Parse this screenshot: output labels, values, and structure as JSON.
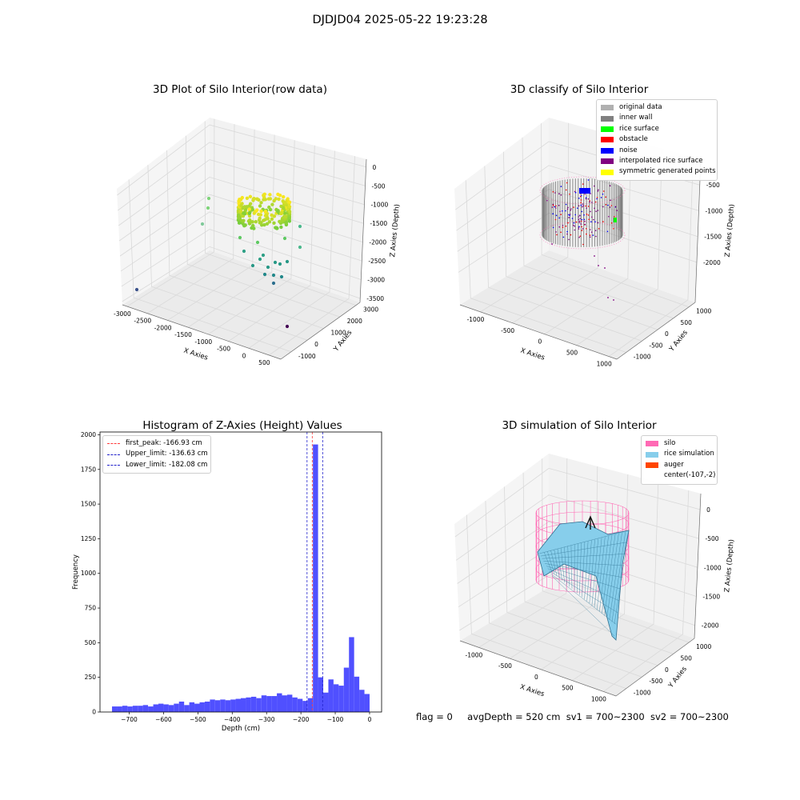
{
  "suptitle": "DJDJD04 2025-05-22 19:23:28",
  "footer": {
    "flag": "flag = 0",
    "avg_depth": "avgDepth = 520 cm",
    "sv1": "sv1 = 700~2300",
    "sv2": "sv2 = 700~2300"
  },
  "colors": {
    "bars": "#5050ff",
    "peak_line": "#ff3b3b",
    "limit_line": "#2222cc",
    "pane": "#f2f2f2",
    "silo": "#ff69b4",
    "rice_sim": "#87ceeb",
    "auger": "#ff4500",
    "inner_wall": "#808080",
    "rice_surface": "#00ff00",
    "obstacle": "#ff0000",
    "noise": "#0000ff",
    "interpolated": "#800080",
    "symmetric": "#ffff00",
    "original": "#b0b0b0"
  },
  "chart_data": [
    {
      "type": "scatter",
      "projection": "3d",
      "title": "3D Plot of Silo Interior(row data)",
      "xlabel": "X Axies",
      "ylabel": "Y Axies",
      "zlabel": "Z Axies (Depth)",
      "x_ticks": [
        "-3000",
        "-2500",
        "-2000",
        "-1500",
        "-1000",
        "-500",
        "0",
        "500"
      ],
      "y_ticks": [
        "-1000",
        "0",
        "1000",
        "2000",
        "3000"
      ],
      "z_ticks": [
        "0",
        "-500",
        "-1000",
        "-1500",
        "-2000",
        "-2500",
        "-3000",
        "-3500"
      ],
      "xlim": [
        -3100,
        800
      ],
      "ylim": [
        -1300,
        3400
      ],
      "zlim": [
        -3800,
        200
      ],
      "colormap": "viridis",
      "grid": true
    },
    {
      "type": "scatter",
      "projection": "3d",
      "title": "3D classify of Silo Interior",
      "xlabel": "X Axies",
      "ylabel": "Y Axies",
      "zlabel": "Z Axies (Depth)",
      "x_ticks": [
        "-1000",
        "-500",
        "0",
        "500",
        "1000"
      ],
      "y_ticks": [
        "-1000",
        "-500",
        "0",
        "500",
        "1000"
      ],
      "z_ticks": [
        "-500",
        "-1000",
        "-1500",
        "-2000"
      ],
      "xlim": [
        -1300,
        1200
      ],
      "ylim": [
        -1200,
        1200
      ],
      "zlim": [
        -2300,
        200
      ],
      "grid": true,
      "legend_position": "top-right",
      "legend": [
        "original data",
        "inner wall",
        "rice surface",
        "obstacle",
        "noise",
        "interpolated rice surface",
        "symmetric generated points"
      ]
    },
    {
      "type": "bar",
      "subtype": "histogram",
      "title": "Histogram of Z-Axies (Height) Values",
      "xlabel": "Depth (cm)",
      "ylabel": "Frequency",
      "x_ticks": [
        -700,
        -600,
        -500,
        -400,
        -300,
        -200,
        -100,
        0
      ],
      "y_ticks": [
        0,
        250,
        500,
        750,
        1000,
        1250,
        1500,
        1750,
        2000
      ],
      "xlim": [
        -785,
        35
      ],
      "ylim": [
        0,
        2020
      ],
      "bin_width": 15,
      "bin_start": -750,
      "values": [
        40,
        40,
        45,
        40,
        45,
        45,
        50,
        40,
        55,
        60,
        55,
        50,
        60,
        75,
        50,
        70,
        60,
        70,
        75,
        90,
        85,
        90,
        85,
        90,
        95,
        100,
        105,
        110,
        100,
        120,
        115,
        115,
        135,
        120,
        125,
        105,
        95,
        80,
        100,
        1930,
        250,
        140,
        235,
        200,
        190,
        320,
        540,
        255,
        160,
        130
      ],
      "legend_position": "top-left",
      "legend": [
        {
          "label": "first_peak: -166.93 cm",
          "value": -166.93,
          "color": "#ff3b3b"
        },
        {
          "label": "Upper_limit: -136.63 cm",
          "value": -136.63,
          "color": "#2222cc"
        },
        {
          "label": "Lower_limit: -182.08 cm",
          "value": -182.08,
          "color": "#2222cc"
        }
      ]
    },
    {
      "type": "surface",
      "projection": "3d",
      "title": "3D simulation of Silo Interior",
      "xlabel": "X Axies",
      "ylabel": "Y Axies",
      "zlabel": "Z Axies (Depth)",
      "x_ticks": [
        "-1000",
        "-500",
        "0",
        "500",
        "1000"
      ],
      "y_ticks": [
        "-1000",
        "-500",
        "0",
        "500",
        "1000"
      ],
      "z_ticks": [
        "0",
        "-500",
        "-1000",
        "-1500",
        "-2000"
      ],
      "xlim": [
        -1300,
        1200
      ],
      "ylim": [
        -1200,
        1200
      ],
      "zlim": [
        -2200,
        300
      ],
      "grid": true,
      "legend_position": "top-right",
      "legend": [
        "silo",
        "rice simulation",
        "auger",
        "center(-107,-2)"
      ]
    }
  ]
}
